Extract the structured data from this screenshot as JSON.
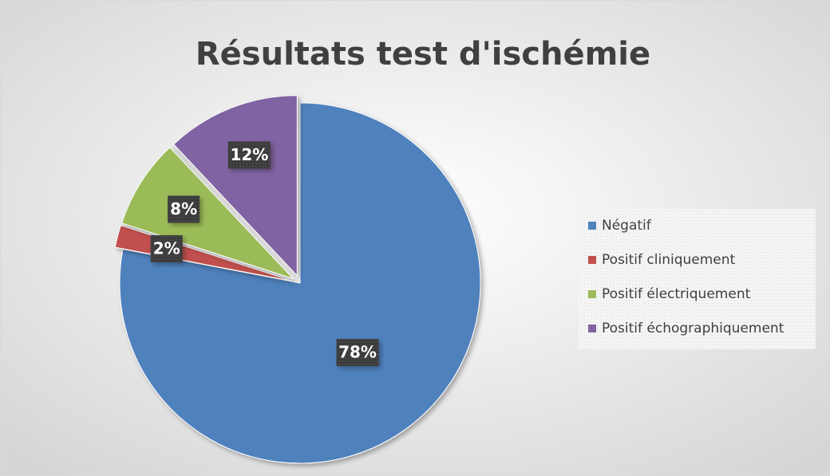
{
  "chart_data": {
    "type": "pie",
    "title": "Résultats test d'ischémie",
    "categories": [
      "Négatif",
      "Positif cliniquement",
      "Positif électriquement",
      "Positif échographiquement"
    ],
    "values": [
      78,
      2,
      8,
      12
    ],
    "value_labels": [
      "78%",
      "2%",
      "8%",
      "12%"
    ],
    "colors": [
      "#4f81bd",
      "#c0504d",
      "#9bbb59",
      "#8064a2"
    ],
    "legend": "right"
  }
}
